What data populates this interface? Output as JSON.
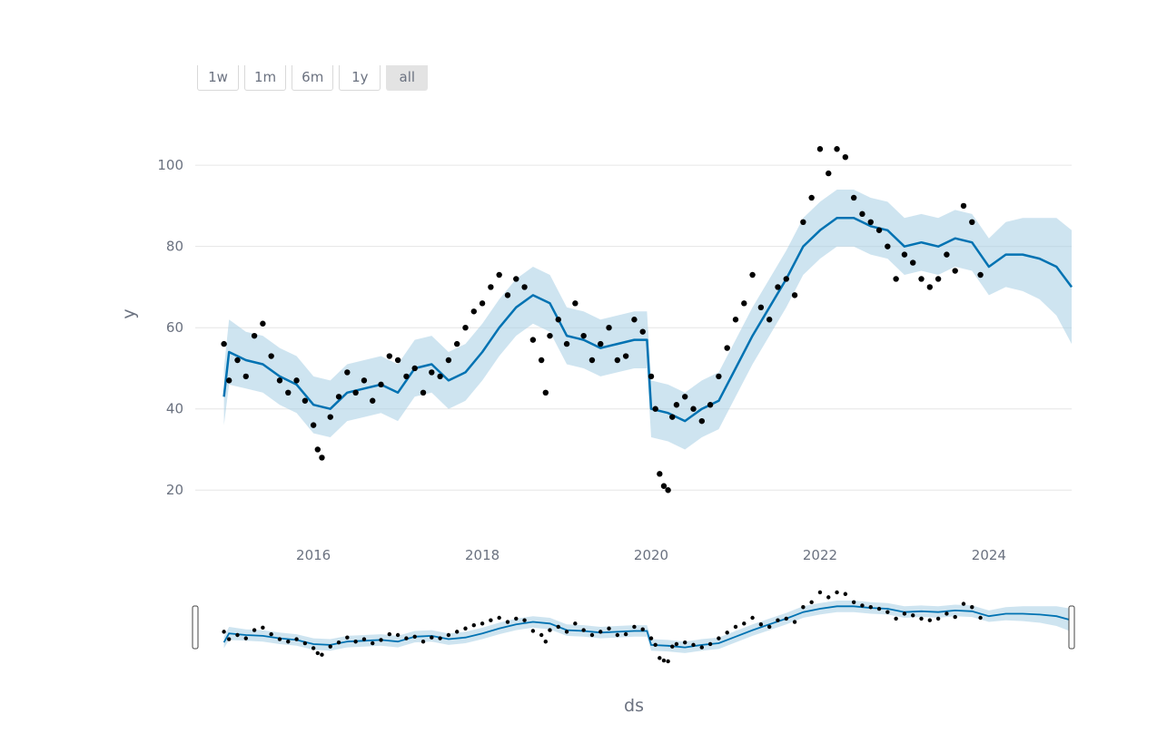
{
  "range_selector": {
    "buttons": [
      {
        "label": "1w",
        "active": false
      },
      {
        "label": "1m",
        "active": false
      },
      {
        "label": "6m",
        "active": false
      },
      {
        "label": "1y",
        "active": false
      },
      {
        "label": "all",
        "active": true
      }
    ]
  },
  "chart_data": {
    "type": "line",
    "title": "",
    "xlabel": "ds",
    "ylabel": "y",
    "xlim": [
      2014.6,
      2024.98
    ],
    "ylim": [
      10,
      115
    ],
    "x_ticks": [
      {
        "label": "2016",
        "value": 2016
      },
      {
        "label": "2018",
        "value": 2018
      },
      {
        "label": "2020",
        "value": 2020
      },
      {
        "label": "2022",
        "value": 2022
      },
      {
        "label": "2024",
        "value": 2024
      }
    ],
    "y_ticks": [
      {
        "label": "20",
        "value": 20
      },
      {
        "label": "40",
        "value": 40
      },
      {
        "label": "60",
        "value": 60
      },
      {
        "label": "80",
        "value": 80
      },
      {
        "label": "100",
        "value": 100
      }
    ],
    "grid": true,
    "legend": "none",
    "colors": {
      "observed": "#000000",
      "forecast": "#0072B2",
      "interval": "#A6CEE3",
      "grid": "#e6e6e6"
    },
    "range_slider": true,
    "series": [
      {
        "kind": "observed-points",
        "x": [
          2014.94,
          2015.0,
          2015.1,
          2015.2,
          2015.3,
          2015.4,
          2015.5,
          2015.6,
          2015.7,
          2015.8,
          2015.9,
          2016.0,
          2016.05,
          2016.1,
          2016.2,
          2016.3,
          2016.4,
          2016.5,
          2016.6,
          2016.7,
          2016.8,
          2016.9,
          2017.0,
          2017.1,
          2017.2,
          2017.3,
          2017.4,
          2017.5,
          2017.6,
          2017.7,
          2017.8,
          2017.9,
          2018.0,
          2018.1,
          2018.2,
          2018.3,
          2018.4,
          2018.5,
          2018.6,
          2018.7,
          2018.75,
          2018.8,
          2018.9,
          2019.0,
          2019.1,
          2019.2,
          2019.3,
          2019.4,
          2019.5,
          2019.6,
          2019.7,
          2019.8,
          2019.9,
          2020.0,
          2020.05,
          2020.1,
          2020.15,
          2020.2,
          2020.25,
          2020.3,
          2020.4,
          2020.5,
          2020.6,
          2020.7,
          2020.8,
          2020.9,
          2021.0,
          2021.1,
          2021.2,
          2021.3,
          2021.4,
          2021.5,
          2021.6,
          2021.7,
          2021.8,
          2021.9,
          2022.0,
          2022.1,
          2022.2,
          2022.3,
          2022.4,
          2022.5,
          2022.6,
          2022.7,
          2022.8,
          2022.9,
          2023.0,
          2023.1,
          2023.2,
          2023.3,
          2023.4,
          2023.5,
          2023.6,
          2023.7,
          2023.8,
          2023.9
        ],
        "y": [
          56,
          47,
          52,
          48,
          58,
          61,
          53,
          47,
          44,
          47,
          42,
          36,
          30,
          28,
          38,
          43,
          49,
          44,
          47,
          42,
          46,
          53,
          52,
          48,
          50,
          44,
          49,
          48,
          52,
          56,
          60,
          64,
          66,
          70,
          73,
          68,
          72,
          70,
          57,
          52,
          44,
          58,
          62,
          56,
          66,
          58,
          52,
          56,
          60,
          52,
          53,
          62,
          59,
          48,
          40,
          24,
          21,
          20,
          38,
          41,
          43,
          40,
          37,
          41,
          48,
          55,
          62,
          66,
          73,
          65,
          62,
          70,
          72,
          68,
          86,
          92,
          104,
          98,
          104,
          102,
          92,
          88,
          86,
          84,
          80,
          72,
          78,
          76,
          72,
          70,
          72,
          78,
          74,
          90,
          86,
          73
        ]
      },
      {
        "kind": "forecast-yhat",
        "x": [
          2014.94,
          2015.0,
          2015.2,
          2015.4,
          2015.6,
          2015.8,
          2016.0,
          2016.2,
          2016.4,
          2016.6,
          2016.8,
          2017.0,
          2017.2,
          2017.4,
          2017.6,
          2017.8,
          2018.0,
          2018.2,
          2018.4,
          2018.6,
          2018.8,
          2019.0,
          2019.2,
          2019.4,
          2019.6,
          2019.8,
          2019.95,
          2020.0,
          2020.2,
          2020.4,
          2020.6,
          2020.8,
          2021.0,
          2021.2,
          2021.4,
          2021.6,
          2021.8,
          2022.0,
          2022.2,
          2022.4,
          2022.6,
          2022.8,
          2023.0,
          2023.2,
          2023.4,
          2023.6,
          2023.8,
          2024.0,
          2024.2,
          2024.4,
          2024.6,
          2024.8,
          2024.98
        ],
        "y": [
          43,
          54,
          52,
          51,
          48,
          46,
          41,
          40,
          44,
          45,
          46,
          44,
          50,
          51,
          47,
          49,
          54,
          60,
          65,
          68,
          66,
          58,
          57,
          55,
          56,
          57,
          57,
          40,
          39,
          37,
          40,
          42,
          50,
          58,
          65,
          72,
          80,
          84,
          87,
          87,
          85,
          84,
          80,
          81,
          80,
          82,
          81,
          75,
          78,
          78,
          77,
          75,
          70
        ]
      },
      {
        "kind": "uncertainty-interval",
        "x": [
          2014.94,
          2015.0,
          2015.2,
          2015.4,
          2015.6,
          2015.8,
          2016.0,
          2016.2,
          2016.4,
          2016.6,
          2016.8,
          2017.0,
          2017.2,
          2017.4,
          2017.6,
          2017.8,
          2018.0,
          2018.2,
          2018.4,
          2018.6,
          2018.8,
          2019.0,
          2019.2,
          2019.4,
          2019.6,
          2019.8,
          2019.95,
          2020.0,
          2020.2,
          2020.4,
          2020.6,
          2020.8,
          2021.0,
          2021.2,
          2021.4,
          2021.6,
          2021.8,
          2022.0,
          2022.2,
          2022.4,
          2022.6,
          2022.8,
          2023.0,
          2023.2,
          2023.4,
          2023.6,
          2023.8,
          2024.0,
          2024.2,
          2024.4,
          2024.6,
          2024.8,
          2024.98
        ],
        "lower": [
          36,
          46,
          45,
          44,
          41,
          39,
          34,
          33,
          37,
          38,
          39,
          37,
          43,
          44,
          40,
          42,
          47,
          53,
          58,
          61,
          59,
          51,
          50,
          48,
          49,
          50,
          50,
          33,
          32,
          30,
          33,
          35,
          43,
          51,
          58,
          65,
          73,
          77,
          80,
          80,
          78,
          77,
          73,
          74,
          73,
          75,
          74,
          68,
          70,
          69,
          67,
          63,
          56
        ],
        "upper": [
          50,
          62,
          59,
          58,
          55,
          53,
          48,
          47,
          51,
          52,
          53,
          51,
          57,
          58,
          54,
          56,
          61,
          67,
          72,
          75,
          73,
          65,
          64,
          62,
          63,
          64,
          64,
          47,
          46,
          44,
          47,
          49,
          57,
          65,
          72,
          79,
          87,
          91,
          94,
          94,
          92,
          91,
          87,
          88,
          87,
          89,
          88,
          82,
          86,
          87,
          87,
          87,
          84
        ]
      }
    ]
  }
}
